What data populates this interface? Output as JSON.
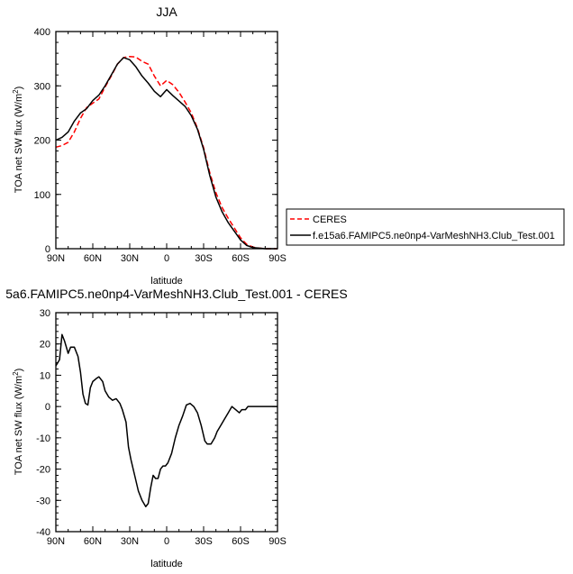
{
  "chart_data": [
    {
      "type": "line",
      "title": "JJA",
      "xlabel": "latitude",
      "ylabel": "TOA net SW flux (W/m",
      "ylabel_sup": "2",
      "ylabel_suffix": ")",
      "xlim": [
        90,
        -90
      ],
      "ylim": [
        0,
        400
      ],
      "xticks": [
        90,
        60,
        30,
        0,
        -30,
        -60,
        -90
      ],
      "xtick_labels": [
        "90N",
        "60N",
        "30N",
        "0",
        "30S",
        "60S",
        "90S"
      ],
      "yticks": [
        0,
        100,
        200,
        300,
        400
      ],
      "ytick_labels": [
        "0",
        "100",
        "200",
        "300",
        "400"
      ],
      "legend_position": "right",
      "series": [
        {
          "name": "CERES",
          "color": "#ff0000",
          "dashed": true,
          "x": [
            90,
            85,
            80,
            75,
            70,
            65,
            60,
            55,
            50,
            45,
            40,
            35,
            30,
            25,
            20,
            15,
            10,
            5,
            0,
            -5,
            -10,
            -15,
            -20,
            -25,
            -30,
            -35,
            -40,
            -45,
            -50,
            -55,
            -60,
            -65,
            -70,
            -75,
            -80,
            -85,
            -90
          ],
          "values": [
            187,
            190,
            196,
            215,
            240,
            260,
            268,
            276,
            298,
            318,
            340,
            352,
            354,
            353,
            345,
            340,
            318,
            300,
            310,
            302,
            288,
            270,
            250,
            222,
            186,
            140,
            103,
            76,
            56,
            38,
            20,
            8,
            3,
            1,
            0,
            0,
            0
          ]
        },
        {
          "name": "f.e15a6.FAMIPC5.ne0np4-VarMeshNH3.Club_Test.001",
          "color": "#000000",
          "dashed": false,
          "x": [
            90,
            85,
            80,
            75,
            70,
            65,
            60,
            55,
            50,
            45,
            40,
            35,
            30,
            25,
            20,
            15,
            10,
            5,
            0,
            -5,
            -10,
            -15,
            -20,
            -25,
            -30,
            -35,
            -40,
            -45,
            -50,
            -55,
            -60,
            -65,
            -70,
            -75,
            -80,
            -85,
            -90
          ],
          "values": [
            200,
            205,
            215,
            235,
            250,
            258,
            273,
            283,
            300,
            320,
            340,
            352,
            348,
            335,
            318,
            305,
            290,
            280,
            293,
            282,
            272,
            262,
            245,
            220,
            183,
            135,
            95,
            68,
            48,
            32,
            16,
            6,
            2,
            1,
            0,
            0,
            0
          ]
        }
      ]
    },
    {
      "type": "line",
      "title": "5a6.FAMIPC5.ne0np4-VarMeshNH3.Club_Test.001 - CERES",
      "xlabel": "latitude",
      "ylabel": "TOA net SW flux (W/m",
      "ylabel_sup": "2",
      "ylabel_suffix": ")",
      "xlim": [
        90,
        -90
      ],
      "ylim": [
        -40,
        30
      ],
      "xticks": [
        90,
        60,
        30,
        0,
        -30,
        -60,
        -90
      ],
      "xtick_labels": [
        "90N",
        "60N",
        "30N",
        "0",
        "30S",
        "60S",
        "90S"
      ],
      "yticks": [
        -40,
        -30,
        -20,
        -10,
        0,
        10,
        20,
        30
      ],
      "ytick_labels": [
        "-40",
        "-30",
        "-20",
        "-10",
        "0",
        "10",
        "20",
        "30"
      ],
      "series": [
        {
          "color": "#000000",
          "dashed": false,
          "x": [
            90,
            87,
            85,
            83,
            80,
            78,
            75,
            72,
            70,
            68,
            66,
            64,
            62,
            60,
            57,
            55,
            52,
            50,
            47,
            44,
            41,
            38,
            36,
            33,
            31,
            29,
            26,
            23,
            20,
            17,
            15,
            13,
            11,
            9,
            7,
            5,
            3,
            1,
            -1,
            -4,
            -7,
            -10,
            -13,
            -16,
            -19,
            -22,
            -25,
            -28,
            -31,
            -33,
            -36,
            -39,
            -41,
            -44,
            -47,
            -50,
            -53,
            -56,
            -59,
            -61,
            -64,
            -66,
            -68,
            -70,
            -72,
            -75,
            -78,
            -81,
            -84,
            -87,
            -90
          ],
          "values": [
            13,
            15,
            23,
            21,
            17,
            19,
            19,
            16,
            11,
            4,
            1,
            0.5,
            6,
            8,
            9,
            9.5,
            8,
            5,
            3,
            2,
            2.5,
            1,
            -1,
            -5,
            -13,
            -17,
            -22,
            -27,
            -30,
            -32,
            -31,
            -26,
            -22,
            -23,
            -23,
            -20,
            -19,
            -19,
            -18,
            -15,
            -10,
            -6,
            -3,
            0.5,
            1,
            0,
            -2,
            -6,
            -11,
            -12,
            -12,
            -10,
            -8,
            -6,
            -4,
            -2,
            0,
            -1,
            -2,
            -1,
            -1,
            0,
            0,
            0,
            0,
            0,
            0,
            0,
            0,
            0,
            0
          ]
        }
      ]
    }
  ]
}
